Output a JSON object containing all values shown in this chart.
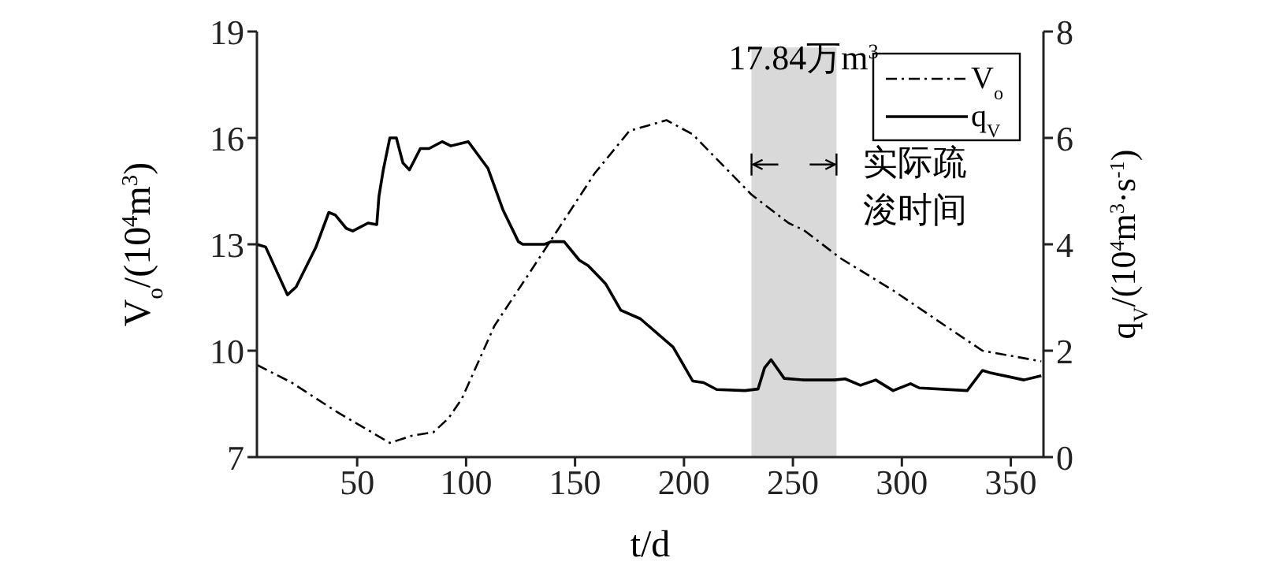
{
  "chart_data": {
    "type": "line",
    "xlabel": "t/d",
    "ylabel": "V$_{o}$/(10$^{4}$m$^{3}$)",
    "y2label": "q$_{V}$/(10$^{4}$m$^{3}$·s$^{-1}$)",
    "xlim": [
      4,
      365
    ],
    "xticks": [
      50,
      100,
      150,
      200,
      250,
      300,
      350
    ],
    "ylim": [
      7,
      19
    ],
    "yticks": [
      7,
      10,
      13,
      16,
      19
    ],
    "y2lim": [
      0,
      8
    ],
    "y2ticks": [
      0,
      2,
      4,
      6,
      8
    ],
    "grid": false,
    "legend": "top right",
    "marker": "none",
    "series": [
      {
        "name": "V$_{o}$",
        "color": "#000000",
        "line_style": "dashed",
        "x": [
          4,
          20,
          40,
          65,
          75,
          85,
          92,
          98,
          113,
          127,
          142,
          159,
          175,
          192,
          204,
          231,
          248,
          255,
          272,
          296,
          320,
          337,
          364
        ],
        "values": [
          9.6,
          9.1,
          8.3,
          7.4,
          7.6,
          7.7,
          8.1,
          8.64,
          10.7,
          12.0,
          13.4,
          15.0,
          16.2,
          16.5,
          16.1,
          14.4,
          13.6,
          13.4,
          12.6,
          11.7,
          10.7,
          10.0,
          9.7
        ]
      },
      {
        "name": "q$_{V}$",
        "color": "#000000",
        "line_style": "solid",
        "axis": "y2",
        "x": [
          4,
          8,
          18,
          22,
          31,
          37,
          40,
          45,
          48,
          55,
          59,
          60,
          62,
          65,
          68,
          71,
          74,
          79,
          83,
          89,
          93,
          101,
          110,
          117,
          124,
          126,
          136,
          139,
          145,
          152,
          156,
          164,
          171,
          180,
          195,
          204,
          209,
          215,
          228,
          234,
          237,
          240,
          246,
          255,
          269,
          274,
          281,
          288,
          296,
          304,
          308,
          330,
          337,
          341,
          356,
          364
        ],
        "values": [
          4.0,
          3.95,
          3.05,
          3.2,
          3.94,
          4.6,
          4.55,
          4.3,
          4.25,
          4.4,
          4.37,
          4.9,
          5.4,
          6.0,
          6.0,
          5.53,
          5.4,
          5.8,
          5.8,
          5.93,
          5.85,
          5.93,
          5.43,
          4.64,
          4.05,
          4.0,
          4.0,
          4.05,
          4.05,
          3.7,
          3.6,
          3.26,
          2.76,
          2.6,
          2.07,
          1.43,
          1.4,
          1.27,
          1.25,
          1.28,
          1.68,
          1.83,
          1.48,
          1.45,
          1.45,
          1.47,
          1.35,
          1.45,
          1.25,
          1.38,
          1.3,
          1.25,
          1.63,
          1.58,
          1.45,
          1.53
        ]
      }
    ],
    "bands": [
      {
        "axis": "x",
        "from": 231,
        "to": 270,
        "label": "实际疏浚时间",
        "color": "#d9d9d9"
      }
    ],
    "annotations": [
      "17.84万m$^{3}$"
    ]
  }
}
